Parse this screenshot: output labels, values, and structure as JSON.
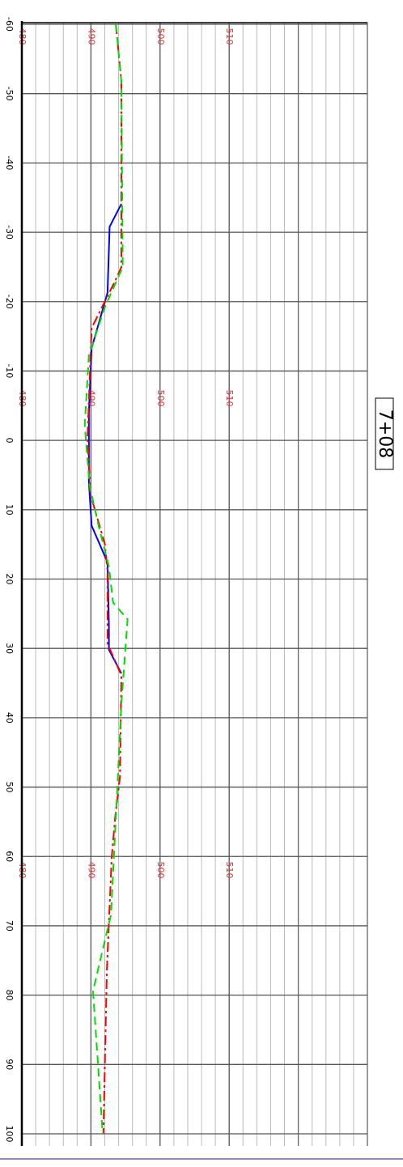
{
  "chart_data": {
    "type": "line",
    "title": "7+08",
    "xlim": [
      -60,
      100
    ],
    "xticks": [
      -60,
      -50,
      -40,
      -30,
      -20,
      -10,
      0,
      10,
      20,
      30,
      40,
      50,
      60,
      70,
      80,
      90,
      100
    ],
    "ylim": [
      480,
      530
    ],
    "yticks": [
      480,
      490,
      500,
      510
    ],
    "grid": true,
    "series": [
      {
        "color": "#0000ff",
        "dash": "solid",
        "x": [
          -34.1,
          -30.8,
          -21.3,
          -13.3,
          -4,
          6,
          12.3,
          17.6,
          26.9,
          30.2,
          33.6
        ],
        "values": [
          494.4,
          492.7,
          492.4,
          490.1,
          489.7,
          489.7,
          490.1,
          492.4,
          492.6,
          492.6,
          494.4
        ]
      },
      {
        "color": "#ff0000",
        "dash": "dashdot",
        "x": [
          -60,
          -51.8,
          -25,
          -23.2,
          -16.2,
          -0.5,
          7.7,
          14.9,
          18.8,
          29.3,
          33.9,
          48.5,
          54.4,
          60.2,
          76.5,
          100
        ],
        "values": [
          493.6,
          494.4,
          494.4,
          493.6,
          490.1,
          489.5,
          489.9,
          492,
          492.4,
          492.4,
          494.4,
          494.2,
          493.5,
          493,
          492.3,
          491.8
        ]
      },
      {
        "color": "#00dd00",
        "dash": "dashed",
        "x": [
          -60,
          -51.8,
          -25,
          -19.2,
          -12.2,
          -2.2,
          6.5,
          12.3,
          18.2,
          23.4,
          25.8,
          38,
          48.5,
          68.4,
          79.4,
          100
        ],
        "values": [
          493.6,
          494.4,
          494.6,
          492,
          489.7,
          489.1,
          489.8,
          491.1,
          492.6,
          493.2,
          495.3,
          494.4,
          493.9,
          492.9,
          490.3,
          491.7
        ]
      }
    ]
  }
}
